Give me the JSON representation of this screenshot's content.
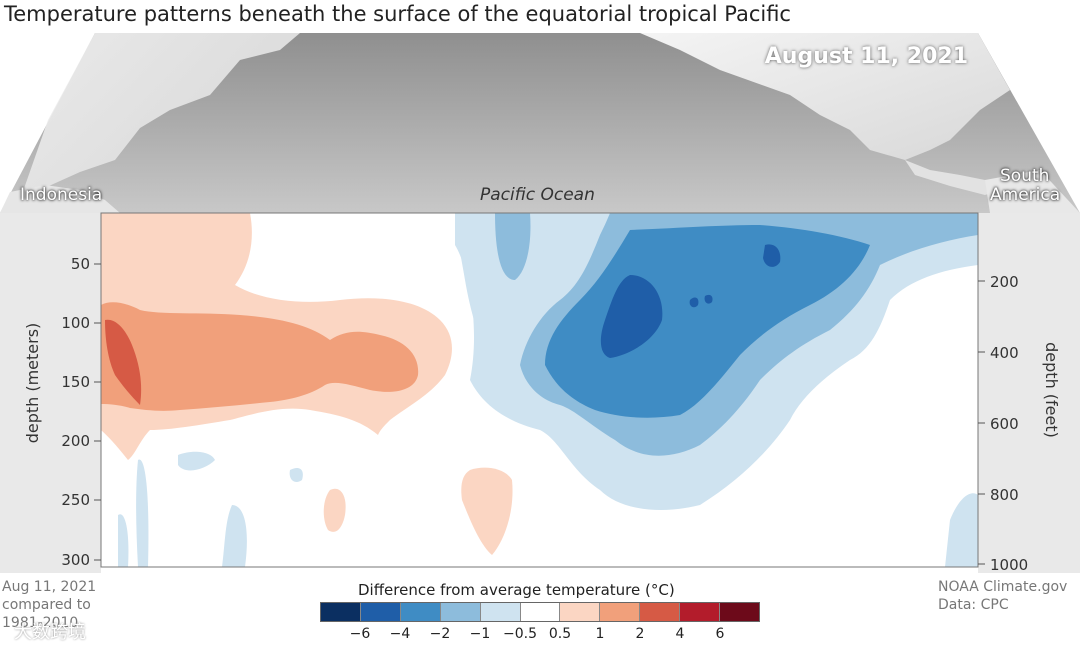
{
  "title": "Temperature patterns beneath the surface of the equatorial tropical Pacific",
  "date": "August 11, 2021",
  "map_labels": {
    "left": "Indonesia",
    "center": "Pacific Ocean",
    "right_line1": "South",
    "right_line2": "America"
  },
  "footer_left": {
    "line1": "Aug 11, 2021",
    "line2": "compared to",
    "line3": "1981-2010"
  },
  "footer_right": {
    "line1": "NOAA Climate.gov",
    "line2": "Data: CPC"
  },
  "watermark": "大数跨境",
  "chart_data": {
    "type": "heatmap",
    "title": "Temperature patterns beneath the surface of the equatorial tropical Pacific",
    "ylabel_left": "depth (meters)",
    "ylabel_right": "depth (feet)",
    "y_left_ticks": [
      "50",
      "100",
      "150",
      "200",
      "250",
      "300"
    ],
    "y_right_ticks": [
      "200",
      "400",
      "600",
      "800",
      "1000"
    ],
    "ylim_meters": [
      0,
      300
    ],
    "xlabel": "Pacific Ocean",
    "x_range_labels": [
      "Indonesia",
      "South America"
    ],
    "legend": {
      "title": "Difference from average temperature (°C)",
      "tick_labels": [
        "−6",
        "−4",
        "−2",
        "−1",
        "−0.5",
        "0.5",
        "1",
        "2",
        "4",
        "6"
      ],
      "colors": [
        "#0b2f61",
        "#1f5ea8",
        "#3f8cc4",
        "#8dbcdc",
        "#cfe3f0",
        "#ffffff",
        "#fbd6c3",
        "#f1a07b",
        "#d65a45",
        "#b31c2b",
        "#6d0a1a"
      ]
    },
    "anomaly_regions": [
      {
        "name": "western warm anomaly",
        "level": "1 to 2",
        "depth_m": [
          80,
          170
        ]
      },
      {
        "name": "western core",
        "level": "2 to 4",
        "depth_m": [
          80,
          160
        ]
      },
      {
        "name": "central-east cold anomaly",
        "level": "-1 to -2",
        "depth_m": [
          20,
          250
        ]
      },
      {
        "name": "eastern cold core",
        "level": "-2 to -4",
        "depth_m": [
          60,
          130
        ]
      }
    ]
  }
}
